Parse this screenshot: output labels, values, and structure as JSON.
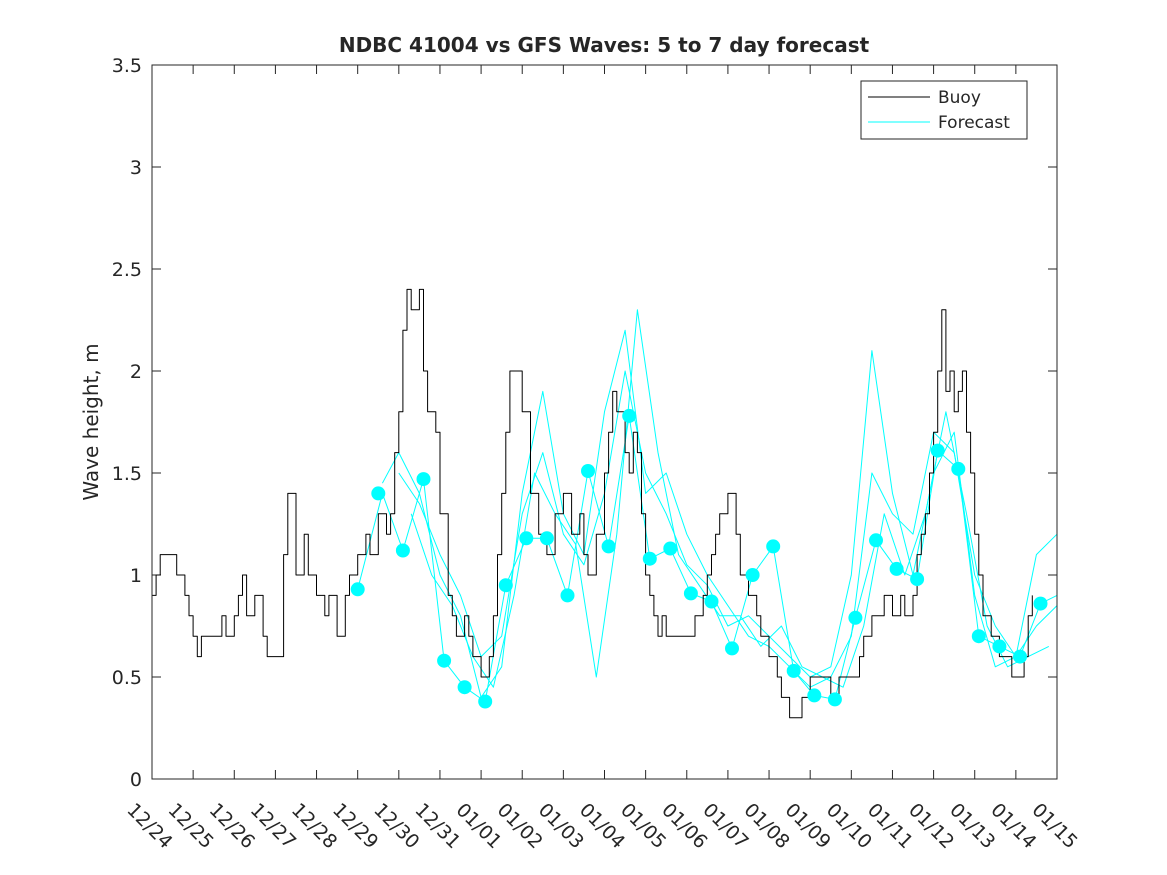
{
  "chart_data": {
    "type": "line",
    "title": "NDBC 41004 vs GFS Waves: 5 to 7 day forecast",
    "xlabel": "",
    "ylabel": "Wave height, m",
    "ylim": [
      0,
      3.5
    ],
    "yticks": [
      "0",
      "0.5",
      "1",
      "1.5",
      "2",
      "2.5",
      "3",
      "3.5"
    ],
    "xlim": [
      0,
      22
    ],
    "xtick_labels": [
      "12/24",
      "12/25",
      "12/26",
      "12/27",
      "12/28",
      "12/29",
      "12/30",
      "12/31",
      "01/01",
      "01/02",
      "01/03",
      "01/04",
      "01/05",
      "01/06",
      "01/07",
      "01/08",
      "01/09",
      "01/10",
      "01/11",
      "01/12",
      "01/13",
      "01/14",
      "01/15"
    ],
    "legend": {
      "position": "top-right",
      "entries": [
        "Buoy",
        "Forecast"
      ]
    },
    "colors": {
      "buoy": "#000000",
      "forecast": "#00ffff",
      "axes": "#262626"
    },
    "series": [
      {
        "name": "Buoy",
        "x": [
          0,
          0.1,
          0.2,
          0.3,
          0.5,
          0.6,
          0.7,
          0.8,
          0.9,
          1.0,
          1.1,
          1.2,
          1.3,
          1.5,
          1.7,
          1.8,
          2.0,
          2.1,
          2.2,
          2.3,
          2.5,
          2.7,
          2.8,
          3.0,
          3.2,
          3.3,
          3.5,
          3.7,
          3.8,
          4.0,
          4.2,
          4.3,
          4.5,
          4.7,
          4.8,
          5.0,
          5.2,
          5.3,
          5.5,
          5.7,
          5.8,
          5.9,
          6.0,
          6.1,
          6.2,
          6.3,
          6.5,
          6.6,
          6.7,
          6.9,
          7.0,
          7.2,
          7.3,
          7.4,
          7.5,
          7.6,
          7.7,
          7.8,
          7.9,
          8.0,
          8.1,
          8.2,
          8.3,
          8.4,
          8.5,
          8.6,
          8.7,
          8.8,
          9.0,
          9.2,
          9.4,
          9.6,
          9.8,
          10.0,
          10.2,
          10.4,
          10.5,
          10.6,
          10.8,
          11.0,
          11.1,
          11.2,
          11.3,
          11.5,
          11.6,
          11.7,
          11.8,
          11.9,
          12.0,
          12.1,
          12.2,
          12.3,
          12.4,
          12.5,
          12.6,
          12.8,
          13.0,
          13.2,
          13.4,
          13.5,
          13.6,
          13.7,
          13.8,
          14.0,
          14.2,
          14.3,
          14.5,
          14.7,
          14.8,
          15.0,
          15.2,
          15.3,
          15.5,
          15.7,
          15.8,
          16.0,
          16.2,
          16.3,
          16.5,
          16.7,
          16.8,
          17.0,
          17.2,
          17.3,
          17.5,
          17.7,
          17.8,
          18.0,
          18.2,
          18.3,
          18.5,
          18.6,
          18.7,
          18.8,
          18.9,
          19.0,
          19.1,
          19.2,
          19.3,
          19.4,
          19.5,
          19.6,
          19.7,
          19.8,
          19.9,
          20.0,
          20.1,
          20.2,
          20.3,
          20.4,
          20.5,
          20.6,
          20.7,
          20.8,
          20.9,
          21.0,
          21.1,
          21.2,
          21.3,
          21.4
        ],
        "values": [
          0.9,
          1.0,
          1.1,
          1.1,
          1.1,
          1.0,
          1.0,
          0.9,
          0.8,
          0.7,
          0.6,
          0.7,
          0.7,
          0.7,
          0.8,
          0.7,
          0.8,
          0.9,
          1.0,
          0.8,
          0.9,
          0.7,
          0.6,
          0.6,
          1.1,
          1.4,
          1.0,
          1.2,
          1.0,
          0.9,
          0.8,
          0.9,
          0.7,
          0.9,
          1.0,
          1.1,
          1.2,
          1.1,
          1.3,
          1.2,
          1.3,
          1.6,
          1.8,
          2.2,
          2.4,
          2.3,
          2.4,
          2.0,
          1.8,
          1.7,
          1.3,
          0.9,
          0.8,
          0.7,
          0.7,
          0.8,
          0.7,
          0.6,
          0.6,
          0.5,
          0.5,
          0.6,
          0.8,
          1.1,
          1.4,
          1.7,
          2.0,
          2.0,
          1.8,
          1.4,
          1.2,
          1.1,
          1.3,
          1.4,
          1.2,
          1.3,
          1.1,
          1.0,
          1.2,
          1.5,
          1.7,
          1.9,
          1.8,
          1.6,
          1.5,
          1.7,
          1.6,
          1.3,
          1.0,
          0.9,
          0.8,
          0.7,
          0.8,
          0.7,
          0.7,
          0.7,
          0.7,
          0.8,
          0.9,
          1.0,
          1.1,
          1.2,
          1.3,
          1.4,
          1.2,
          1.0,
          0.9,
          0.8,
          0.7,
          0.6,
          0.5,
          0.4,
          0.3,
          0.3,
          0.4,
          0.5,
          0.5,
          0.5,
          0.4,
          0.5,
          0.5,
          0.5,
          0.6,
          0.7,
          0.8,
          0.8,
          0.9,
          0.8,
          0.9,
          0.8,
          0.9,
          1.1,
          1.2,
          1.3,
          1.5,
          1.7,
          2.0,
          2.3,
          1.9,
          2.0,
          1.8,
          1.9,
          2.0,
          1.7,
          1.5,
          1.2,
          1.0,
          0.8,
          0.8,
          0.7,
          0.7,
          0.6,
          0.6,
          0.6,
          0.5,
          0.5,
          0.5,
          0.6,
          0.8,
          0.9
        ]
      },
      {
        "name": "Forecast run 1",
        "x": [
          5.0,
          5.6,
          6.1,
          6.6,
          7.1,
          7.6,
          8.1,
          8.6,
          9.1,
          9.6,
          10.1,
          10.6,
          11.1,
          11.6,
          12.1,
          12.6,
          13.1,
          13.6,
          14.1,
          14.6,
          15.1,
          15.6,
          16.1,
          16.6,
          17.1,
          17.6,
          18.1,
          18.6,
          19.1,
          19.6,
          20.1,
          20.6,
          21.1,
          21.6,
          22.0
        ],
        "values": [
          0.93,
          1.4,
          1.12,
          1.47,
          0.58,
          0.45,
          0.38,
          0.95,
          1.18,
          1.18,
          0.9,
          1.51,
          1.14,
          1.78,
          1.08,
          1.13,
          0.91,
          0.87,
          0.64,
          1.0,
          1.14,
          0.53,
          0.41,
          0.39,
          0.79,
          1.17,
          1.03,
          0.98,
          1.61,
          1.52,
          0.7,
          0.65,
          0.6,
          0.86,
          0.9
        ]
      },
      {
        "name": "Forecast run 2",
        "x": [
          5.6,
          6.0,
          6.5,
          7.0,
          7.5,
          8.0,
          8.5,
          9.0,
          9.5,
          10.0,
          10.5,
          11.0,
          11.5,
          12.0,
          12.5,
          13.0,
          13.5,
          14.0,
          14.5,
          15.0,
          15.5,
          16.0,
          16.5,
          17.0,
          17.5,
          18.0,
          18.5,
          19.0,
          19.5,
          20.0,
          20.5,
          21.0,
          21.5,
          22.0
        ],
        "values": [
          1.45,
          1.6,
          1.4,
          1.0,
          0.8,
          0.4,
          0.55,
          1.4,
          1.9,
          1.3,
          1.1,
          1.8,
          2.2,
          1.4,
          1.5,
          1.2,
          1.0,
          0.85,
          0.7,
          0.65,
          0.55,
          0.45,
          0.5,
          0.7,
          1.5,
          1.3,
          1.2,
          1.7,
          1.6,
          1.0,
          0.75,
          0.6,
          0.75,
          0.85
        ]
      },
      {
        "name": "Forecast run 3",
        "x": [
          6.0,
          6.5,
          7.0,
          7.5,
          8.0,
          8.5,
          9.0,
          9.5,
          10.0,
          10.5,
          11.0,
          11.5,
          12.0,
          12.5,
          13.0,
          13.5,
          14.0,
          14.5,
          15.0,
          15.5,
          16.0,
          16.5,
          17.0,
          17.5,
          18.0,
          18.5,
          19.0,
          19.5,
          20.0,
          20.5,
          21.0,
          21.5,
          22.0
        ],
        "values": [
          1.5,
          1.35,
          1.1,
          0.9,
          0.6,
          0.7,
          1.3,
          1.6,
          1.2,
          1.05,
          1.4,
          2.0,
          1.5,
          1.3,
          1.05,
          0.95,
          0.75,
          0.8,
          0.7,
          0.6,
          0.5,
          0.55,
          1.0,
          2.1,
          1.4,
          1.0,
          1.5,
          1.7,
          0.9,
          0.55,
          0.6,
          1.1,
          1.2
        ]
      },
      {
        "name": "Forecast run 4",
        "x": [
          6.3,
          6.8,
          7.3,
          7.8,
          8.3,
          8.8,
          9.3,
          9.8,
          10.3,
          10.8,
          11.3,
          11.8,
          12.3,
          12.8,
          13.3,
          13.8,
          14.3,
          14.8,
          15.3,
          15.8,
          16.3,
          16.8,
          17.3,
          17.8,
          18.3,
          18.8,
          19.3,
          19.8,
          20.3,
          20.8,
          21.3,
          21.8
        ],
        "values": [
          1.3,
          1.0,
          0.85,
          0.6,
          0.45,
          0.9,
          1.5,
          1.3,
          1.15,
          0.5,
          1.2,
          2.3,
          1.6,
          1.1,
          0.95,
          0.8,
          0.8,
          0.65,
          0.75,
          0.55,
          0.5,
          0.45,
          0.75,
          1.3,
          1.0,
          1.3,
          1.8,
          1.3,
          0.75,
          0.55,
          0.6,
          0.65
        ]
      }
    ],
    "markers": {
      "name": "Forecast",
      "x": [
        5.0,
        5.5,
        6.1,
        6.6,
        7.1,
        7.6,
        8.1,
        8.6,
        9.1,
        9.6,
        10.1,
        10.6,
        11.1,
        11.6,
        12.1,
        12.6,
        13.1,
        13.6,
        14.1,
        14.6,
        15.1,
        15.6,
        16.1,
        16.6,
        17.1,
        17.6,
        18.1,
        18.6,
        19.1,
        19.6,
        20.1,
        20.6,
        21.1,
        21.6
      ],
      "values": [
        0.93,
        1.4,
        1.12,
        1.47,
        0.58,
        0.45,
        0.38,
        0.95,
        1.18,
        1.18,
        0.9,
        1.51,
        1.14,
        1.78,
        1.08,
        1.13,
        0.91,
        0.87,
        0.64,
        1.0,
        1.14,
        0.53,
        0.41,
        0.39,
        0.79,
        1.17,
        1.03,
        0.98,
        1.61,
        1.52,
        0.7,
        0.65,
        0.6,
        0.86
      ]
    }
  }
}
